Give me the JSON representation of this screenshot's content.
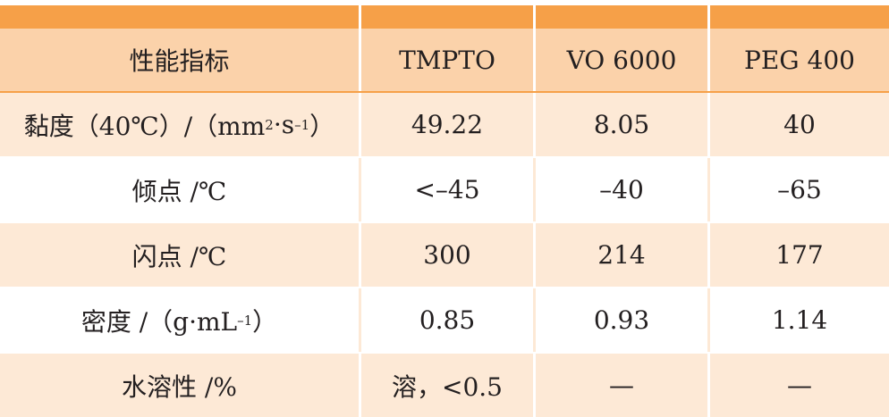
{
  "table": {
    "columns": [
      "性能指标",
      "TMPTO",
      "VO 6000",
      "PEG 400"
    ],
    "rows": [
      {
        "label_main": "黏度（40℃）/（mm",
        "label_sup1": "2",
        "label_mid": "·s",
        "label_sup2": "–1",
        "label_end": "）",
        "values": [
          "49.22",
          "8.05",
          "40"
        ]
      },
      {
        "label": "倾点 /℃",
        "values": [
          "<–45",
          "–40",
          "–65"
        ]
      },
      {
        "label": "闪点 /℃",
        "values": [
          "300",
          "214",
          "177"
        ]
      },
      {
        "label_main": "密度 /（g·mL",
        "label_sup1": "–1",
        "label_end": "）",
        "values": [
          "0.85",
          "0.93",
          "1.14"
        ]
      },
      {
        "label": "水溶性 /%",
        "values": [
          "溶，<0.5",
          "—",
          "—"
        ]
      }
    ]
  },
  "colors": {
    "header_bar": "#f6a048",
    "header_bg": "#fbd2aa",
    "alt_row": "#fde9d6"
  }
}
